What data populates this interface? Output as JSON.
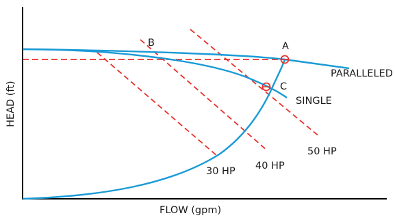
{
  "colors": {
    "axis": "#000000",
    "curve": "#1a9ad6",
    "dashed": "#e8312a",
    "marker": "#e8312a",
    "text": "#1a1a1a"
  },
  "axes": {
    "x_label": "FLOW (gpm)",
    "y_label": "HEAD (ft)"
  },
  "curves": {
    "paralleled": "PARALLELED",
    "single": "SINGLE"
  },
  "power_lines": {
    "hp30": "30 HP",
    "hp40": "40 HP",
    "hp50": "50 HP"
  },
  "points": {
    "a": "A",
    "b": "B",
    "c": "C"
  }
}
